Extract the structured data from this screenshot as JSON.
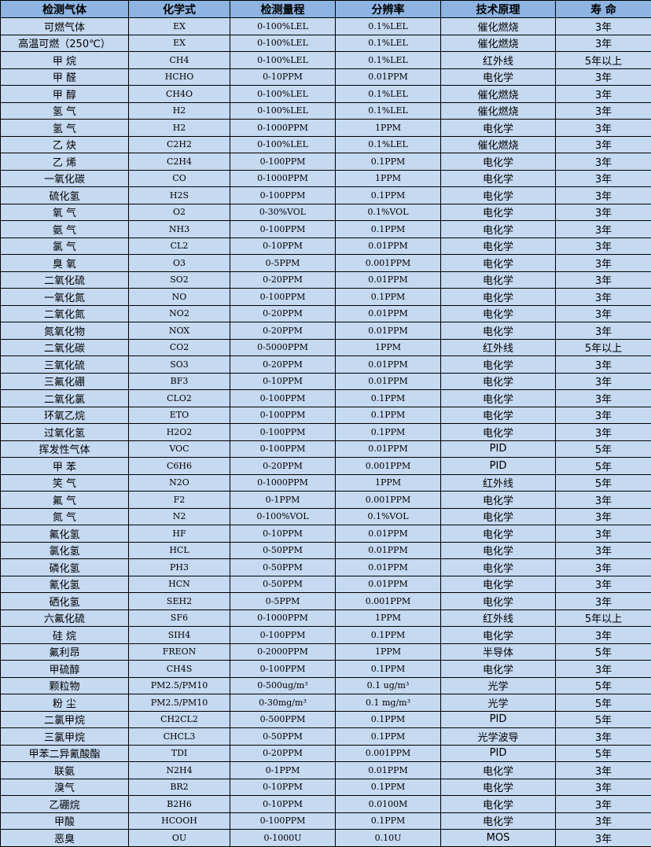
{
  "headers": [
    "检测气体",
    "化学式",
    "检测量程",
    "分辨率",
    "技术原理",
    "寿 命"
  ],
  "rows": [
    [
      "可燃气体",
      "EX",
      "0-100%LEL",
      "0.1%LEL",
      "催化燃烧",
      "3年"
    ],
    [
      "高温可燃（250℃）",
      "EX",
      "0-100%LEL",
      "0.1%LEL",
      "催化燃烧",
      "3年"
    ],
    [
      "甲 烷",
      "CH4",
      "0-100%LEL",
      "0.1%LEL",
      "红外线",
      "5年以上"
    ],
    [
      "甲 醛",
      "HCHO",
      "0-10PPM",
      "0.01PPM",
      "电化学",
      "3年"
    ],
    [
      "甲 醇",
      "CH4O",
      "0-100%LEL",
      "0.1%LEL",
      "催化燃烧",
      "3年"
    ],
    [
      "氢 气",
      "H2",
      "0-100%LEL",
      "0.1%LEL",
      "催化燃烧",
      "3年"
    ],
    [
      "氢 气",
      "H2",
      "0-1000PPM",
      "1PPM",
      "电化学",
      "3年"
    ],
    [
      "乙 炔",
      "C2H2",
      "0-100%LEL",
      "0.1%LEL",
      "催化燃烧",
      "3年"
    ],
    [
      "乙 烯",
      "C2H4",
      "0-100PPM",
      "0.1PPM",
      "电化学",
      "3年"
    ],
    [
      "一氧化碳",
      "CO",
      "0-1000PPM",
      "1PPM",
      "电化学",
      "3年"
    ],
    [
      "硫化氢",
      "H2S",
      "0-100PPM",
      "0.1PPM",
      "电化学",
      "3年"
    ],
    [
      "氧 气",
      "O2",
      "0-30%VOL",
      "0.1%VOL",
      "电化学",
      "3年"
    ],
    [
      "氨 气",
      "NH3",
      "0-100PPM",
      "0.1PPM",
      "电化学",
      "3年"
    ],
    [
      "氯 气",
      "CL2",
      "0-10PPM",
      "0.01PPM",
      "电化学",
      "3年"
    ],
    [
      "臭 氧",
      "O3",
      "0-5PPM",
      "0.001PPM",
      "电化学",
      "3年"
    ],
    [
      "二氧化硫",
      "SO2",
      "0-20PPM",
      "0.01PPM",
      "电化学",
      "3年"
    ],
    [
      "一氧化氮",
      "NO",
      "0-100PPM",
      "0.1PPM",
      "电化学",
      "3年"
    ],
    [
      "二氧化氮",
      "NO2",
      "0-20PPM",
      "0.01PPM",
      "电化学",
      "3年"
    ],
    [
      "氮氧化物",
      "NOX",
      "0-20PPM",
      "0.01PPM",
      "电化学",
      "3年"
    ],
    [
      "二氧化碳",
      "CO2",
      "0-5000PPM",
      "1PPM",
      "红外线",
      "5年以上"
    ],
    [
      "三氧化硫",
      "SO3",
      "0-20PPM",
      "0.01PPM",
      "电化学",
      "3年"
    ],
    [
      "三氟化硼",
      "BF3",
      "0-10PPM",
      "0.01PPM",
      "电化学",
      "3年"
    ],
    [
      "二氧化氯",
      "CLO2",
      "0-100PPM",
      "0.1PPM",
      "电化学",
      "3年"
    ],
    [
      "环氧乙烷",
      "ETO",
      "0-100PPM",
      "0.1PPM",
      "电化学",
      "3年"
    ],
    [
      "过氧化氢",
      "H2O2",
      "0-100PPM",
      "0.1PPM",
      "电化学",
      "3年"
    ],
    [
      "挥发性气体",
      "VOC",
      "0-100PPM",
      "0.01PPM",
      "PID",
      "5年"
    ],
    [
      "甲 苯",
      "C6H6",
      "0-20PPM",
      "0.001PPM",
      "PID",
      "5年"
    ],
    [
      "笑 气",
      "N2O",
      "0-1000PPM",
      "1PPM",
      "红外线",
      "5年"
    ],
    [
      "氟 气",
      "F2",
      "0-1PPM",
      "0.001PPM",
      "电化学",
      "3年"
    ],
    [
      "氮 气",
      "N2",
      "0-100%VOL",
      "0.1%VOL",
      "电化学",
      "3年"
    ],
    [
      "氟化氢",
      "HF",
      "0-10PPM",
      "0.01PPM",
      "电化学",
      "3年"
    ],
    [
      "氯化氢",
      "HCL",
      "0-50PPM",
      "0.01PPM",
      "电化学",
      "3年"
    ],
    [
      "磷化氢",
      "PH3",
      "0-50PPM",
      "0.01PPM",
      "电化学",
      "3年"
    ],
    [
      "氰化氢",
      "HCN",
      "0-50PPM",
      "0.01PPM",
      "电化学",
      "3年"
    ],
    [
      "硒化氢",
      "SEH2",
      "0-5PPM",
      "0.001PPM",
      "电化学",
      "3年"
    ],
    [
      "六氟化硫",
      "SF6",
      "0-1000PPM",
      "1PPM",
      "红外线",
      "5年以上"
    ],
    [
      "硅 烷",
      "SIH4",
      "0-100PPM",
      "0.1PPM",
      "电化学",
      "3年"
    ],
    [
      "氟利昂",
      "FREON",
      "0-2000PPM",
      "1PPM",
      "半导体",
      "5年"
    ],
    [
      "甲硫醇",
      "CH4S",
      "0-100PPM",
      "0.1PPM",
      "电化学",
      "3年"
    ],
    [
      "颗粒物",
      "PM2.5/PM10",
      "0-500ug/m³",
      "0.1 ug/m³",
      "光学",
      "5年"
    ],
    [
      "粉 尘",
      "PM2.5/PM10",
      "0-30mg/m³",
      "0.1 mg/m³",
      "光学",
      "5年"
    ],
    [
      "二氯甲烷",
      "CH2CL2",
      "0-500PPM",
      "0.1PPM",
      "PID",
      "5年"
    ],
    [
      "三氯甲烷",
      "CHCL3",
      "0-50PPM",
      "0.1PPM",
      "光学波导",
      "3年"
    ],
    [
      "甲苯二异氰酸酯",
      "TDI",
      "0-20PPM",
      "0.001PPM",
      "PID",
      "5年"
    ],
    [
      "联氨",
      "N2H4",
      "0-1PPM",
      "0.01PPM",
      "电化学",
      "3年"
    ],
    [
      "溴气",
      "BR2",
      "0-10PPM",
      "0.1PPM",
      "电化学",
      "3年"
    ],
    [
      "乙硼烷",
      "B2H6",
      "0-10PPM",
      "0.0100M",
      "电化学",
      "3年"
    ],
    [
      "甲酸",
      "HCOOH",
      "0-100PPM",
      "0.1PPM",
      "电化学",
      "3年"
    ],
    [
      "恶臭",
      "OU",
      "0-1000U",
      "0.10U",
      "MOS",
      "3年"
    ]
  ],
  "colors": {
    "header_bg": "#8DB4E2",
    "row_bg": "#C5D9F1",
    "border": "#000000"
  }
}
